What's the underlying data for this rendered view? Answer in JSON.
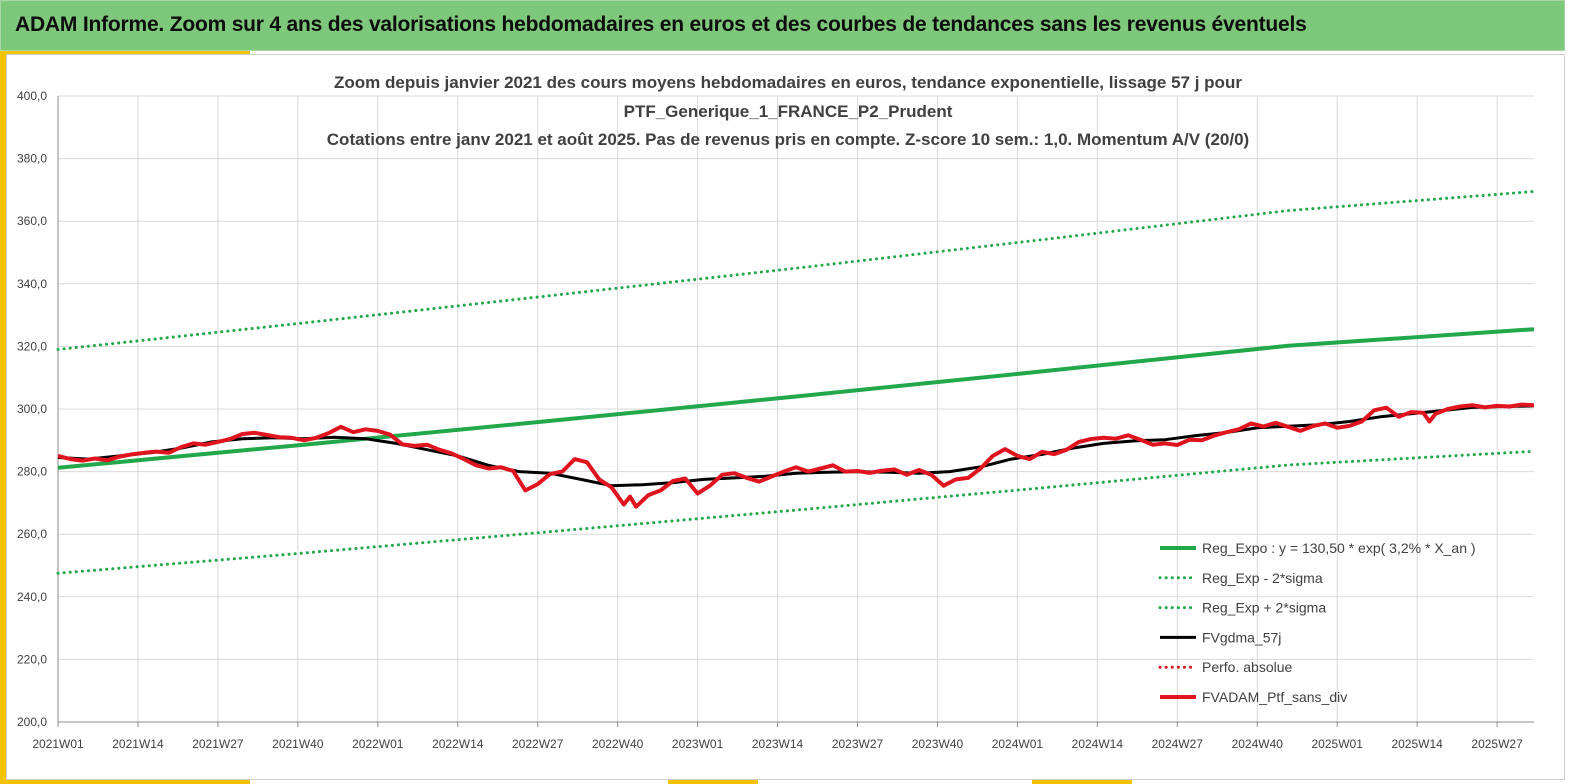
{
  "banner": {
    "title": "ADAM Informe. Zoom sur 4 ans des valorisations hebdomadaires en euros et des courbes de tendances sans les revenus éventuels"
  },
  "chart_data": {
    "type": "line",
    "title": [
      "Zoom depuis janvier 2021 des cours moyens hebdomadaires  en euros, tendance exponentielle, lissage 57 j pour",
      "PTF_Generique_1_FRANCE_P2_Prudent",
      "Cotations  entre janv 2021 et août 2025. Pas de revenus pris en compte. Z-score 10 sem.: 1,0. Momentum A/V (20/0)"
    ],
    "ylim": [
      200,
      400
    ],
    "yticks": [
      "400,0",
      "380,0",
      "360,0",
      "340,0",
      "320,0",
      "300,0",
      "280,0",
      "260,0",
      "240,0",
      "220,0",
      "200,0"
    ],
    "x_range": [
      0,
      240
    ],
    "x_ticks": [
      {
        "label": "2021W01",
        "x": 0
      },
      {
        "label": "2021W14",
        "x": 13
      },
      {
        "label": "2021W27",
        "x": 26
      },
      {
        "label": "2021W40",
        "x": 39
      },
      {
        "label": "2022W01",
        "x": 52
      },
      {
        "label": "2022W14",
        "x": 65
      },
      {
        "label": "2022W27",
        "x": 78
      },
      {
        "label": "2022W40",
        "x": 91
      },
      {
        "label": "2023W01",
        "x": 104
      },
      {
        "label": "2023W14",
        "x": 117
      },
      {
        "label": "2023W27",
        "x": 130
      },
      {
        "label": "2023W40",
        "x": 143
      },
      {
        "label": "2024W01",
        "x": 156
      },
      {
        "label": "2024W14",
        "x": 169
      },
      {
        "label": "2024W27",
        "x": 182
      },
      {
        "label": "2024W40",
        "x": 195
      },
      {
        "label": "2025W01",
        "x": 208
      },
      {
        "label": "2025W14",
        "x": 221
      },
      {
        "label": "2025W27",
        "x": 234
      }
    ],
    "grid": true,
    "legend_position": "bottom-right",
    "series": [
      {
        "name": "Reg_Expo : y = 130,50 * exp( 3,2% *  X_an )",
        "style": "solid",
        "color": "#22a84a",
        "width": 4,
        "points": [
          [
            0,
            281.2
          ],
          [
            40,
            288.6
          ],
          [
            80,
            296.2
          ],
          [
            120,
            304.0
          ],
          [
            160,
            312.0
          ],
          [
            200,
            320.2
          ],
          [
            240,
            325.5
          ]
        ]
      },
      {
        "name": "Reg_Exp - 2*sigma",
        "style": "dotted",
        "color": "#22a84a",
        "width": 3,
        "points": [
          [
            0,
            247.5
          ],
          [
            40,
            254.0
          ],
          [
            80,
            260.8
          ],
          [
            120,
            267.7
          ],
          [
            160,
            274.8
          ],
          [
            200,
            282.1
          ],
          [
            240,
            286.5
          ]
        ]
      },
      {
        "name": "Reg_Exp + 2*sigma",
        "style": "dotted",
        "color": "#22a84a",
        "width": 3,
        "points": [
          [
            0,
            319.0
          ],
          [
            40,
            327.5
          ],
          [
            80,
            336.2
          ],
          [
            120,
            345.0
          ],
          [
            160,
            354.1
          ],
          [
            200,
            363.4
          ],
          [
            240,
            369.5
          ]
        ]
      },
      {
        "name": "FVgdma_57j",
        "style": "solid",
        "color": "#000000",
        "width": 3,
        "points": [
          [
            0,
            284.5
          ],
          [
            5,
            284.0
          ],
          [
            10,
            285.0
          ],
          [
            15,
            286.0
          ],
          [
            20,
            287.5
          ],
          [
            25,
            289.5
          ],
          [
            30,
            290.5
          ],
          [
            35,
            290.8
          ],
          [
            40,
            290.5
          ],
          [
            45,
            291.0
          ],
          [
            50,
            290.5
          ],
          [
            55,
            289.0
          ],
          [
            60,
            287.0
          ],
          [
            65,
            285.0
          ],
          [
            70,
            282.0
          ],
          [
            75,
            280.0
          ],
          [
            80,
            279.5
          ],
          [
            85,
            277.5
          ],
          [
            90,
            275.5
          ],
          [
            95,
            275.8
          ],
          [
            100,
            276.5
          ],
          [
            105,
            277.5
          ],
          [
            110,
            278.0
          ],
          [
            115,
            278.5
          ],
          [
            120,
            279.5
          ],
          [
            125,
            279.8
          ],
          [
            130,
            280.0
          ],
          [
            135,
            279.8
          ],
          [
            140,
            279.5
          ],
          [
            145,
            280.0
          ],
          [
            150,
            281.5
          ],
          [
            155,
            284.0
          ],
          [
            160,
            285.5
          ],
          [
            165,
            287.5
          ],
          [
            170,
            289.0
          ],
          [
            175,
            289.8
          ],
          [
            180,
            290.2
          ],
          [
            185,
            291.5
          ],
          [
            190,
            292.5
          ],
          [
            195,
            294.0
          ],
          [
            200,
            294.5
          ],
          [
            205,
            295.0
          ],
          [
            210,
            296.0
          ],
          [
            215,
            297.5
          ],
          [
            220,
            298.5
          ],
          [
            225,
            299.5
          ],
          [
            230,
            300.5
          ],
          [
            235,
            300.8
          ],
          [
            240,
            301.0
          ]
        ]
      },
      {
        "name": "Perfo. absolue",
        "style": "dotted",
        "color": "#e0141e",
        "width": 3,
        "points": []
      },
      {
        "name": "FVADAM_Ptf_sans_div",
        "style": "solid",
        "color": "#e0141e",
        "width": 4,
        "points": [
          [
            0,
            285.0
          ],
          [
            2,
            284.0
          ],
          [
            4,
            283.5
          ],
          [
            6,
            284.2
          ],
          [
            8,
            283.6
          ],
          [
            10,
            284.8
          ],
          [
            12,
            285.5
          ],
          [
            14,
            286.0
          ],
          [
            16,
            286.4
          ],
          [
            18,
            286.0
          ],
          [
            20,
            287.8
          ],
          [
            22,
            289.0
          ],
          [
            24,
            288.6
          ],
          [
            26,
            289.5
          ],
          [
            28,
            290.4
          ],
          [
            30,
            292.0
          ],
          [
            32,
            292.4
          ],
          [
            34,
            291.7
          ],
          [
            36,
            291.0
          ],
          [
            38,
            290.8
          ],
          [
            40,
            290.0
          ],
          [
            42,
            290.8
          ],
          [
            44,
            292.3
          ],
          [
            46,
            294.3
          ],
          [
            48,
            292.6
          ],
          [
            50,
            293.5
          ],
          [
            52,
            293.0
          ],
          [
            54,
            291.8
          ],
          [
            56,
            288.7
          ],
          [
            58,
            288.2
          ],
          [
            60,
            288.6
          ],
          [
            62,
            287.0
          ],
          [
            64,
            285.8
          ],
          [
            66,
            284.0
          ],
          [
            68,
            282.0
          ],
          [
            70,
            281.0
          ],
          [
            72,
            281.4
          ],
          [
            74,
            280.2
          ],
          [
            76,
            274.0
          ],
          [
            78,
            276.0
          ],
          [
            80,
            279.2
          ],
          [
            82,
            280.0
          ],
          [
            84,
            284.0
          ],
          [
            86,
            283.0
          ],
          [
            88,
            277.5
          ],
          [
            90,
            275.0
          ],
          [
            92,
            269.5
          ],
          [
            93,
            272.0
          ],
          [
            94,
            268.8
          ],
          [
            96,
            272.5
          ],
          [
            98,
            274.0
          ],
          [
            100,
            277.0
          ],
          [
            102,
            277.8
          ],
          [
            104,
            273.0
          ],
          [
            106,
            275.5
          ],
          [
            108,
            279.0
          ],
          [
            110,
            279.5
          ],
          [
            112,
            278.0
          ],
          [
            114,
            276.8
          ],
          [
            116,
            278.4
          ],
          [
            118,
            280.0
          ],
          [
            120,
            281.4
          ],
          [
            122,
            280.0
          ],
          [
            124,
            281.0
          ],
          [
            126,
            282.0
          ],
          [
            128,
            280.0
          ],
          [
            130,
            280.2
          ],
          [
            132,
            279.6
          ],
          [
            134,
            280.3
          ],
          [
            136,
            280.7
          ],
          [
            138,
            279.0
          ],
          [
            140,
            280.5
          ],
          [
            142,
            279.0
          ],
          [
            144,
            275.5
          ],
          [
            146,
            277.5
          ],
          [
            148,
            278.0
          ],
          [
            150,
            281.0
          ],
          [
            152,
            285.0
          ],
          [
            154,
            287.2
          ],
          [
            156,
            285.0
          ],
          [
            158,
            284.0
          ],
          [
            160,
            286.3
          ],
          [
            162,
            285.6
          ],
          [
            164,
            287.0
          ],
          [
            166,
            289.5
          ],
          [
            168,
            290.4
          ],
          [
            170,
            290.8
          ],
          [
            172,
            290.5
          ],
          [
            174,
            291.6
          ],
          [
            176,
            290.2
          ],
          [
            178,
            288.6
          ],
          [
            180,
            289.0
          ],
          [
            182,
            288.5
          ],
          [
            184,
            290.2
          ],
          [
            186,
            290.0
          ],
          [
            188,
            291.5
          ],
          [
            190,
            292.6
          ],
          [
            192,
            293.5
          ],
          [
            194,
            295.4
          ],
          [
            196,
            294.4
          ],
          [
            198,
            295.6
          ],
          [
            200,
            294.3
          ],
          [
            202,
            293.0
          ],
          [
            204,
            294.5
          ],
          [
            206,
            295.4
          ],
          [
            208,
            294.0
          ],
          [
            210,
            294.6
          ],
          [
            212,
            296.0
          ],
          [
            214,
            299.6
          ],
          [
            216,
            300.4
          ],
          [
            218,
            297.5
          ],
          [
            220,
            299.0
          ],
          [
            222,
            298.8
          ],
          [
            223,
            296.0
          ],
          [
            224,
            298.5
          ],
          [
            226,
            300.0
          ],
          [
            228,
            300.8
          ],
          [
            230,
            301.2
          ],
          [
            232,
            300.5
          ],
          [
            234,
            301.0
          ],
          [
            236,
            300.8
          ],
          [
            238,
            301.4
          ],
          [
            240,
            301.2
          ]
        ]
      }
    ]
  }
}
